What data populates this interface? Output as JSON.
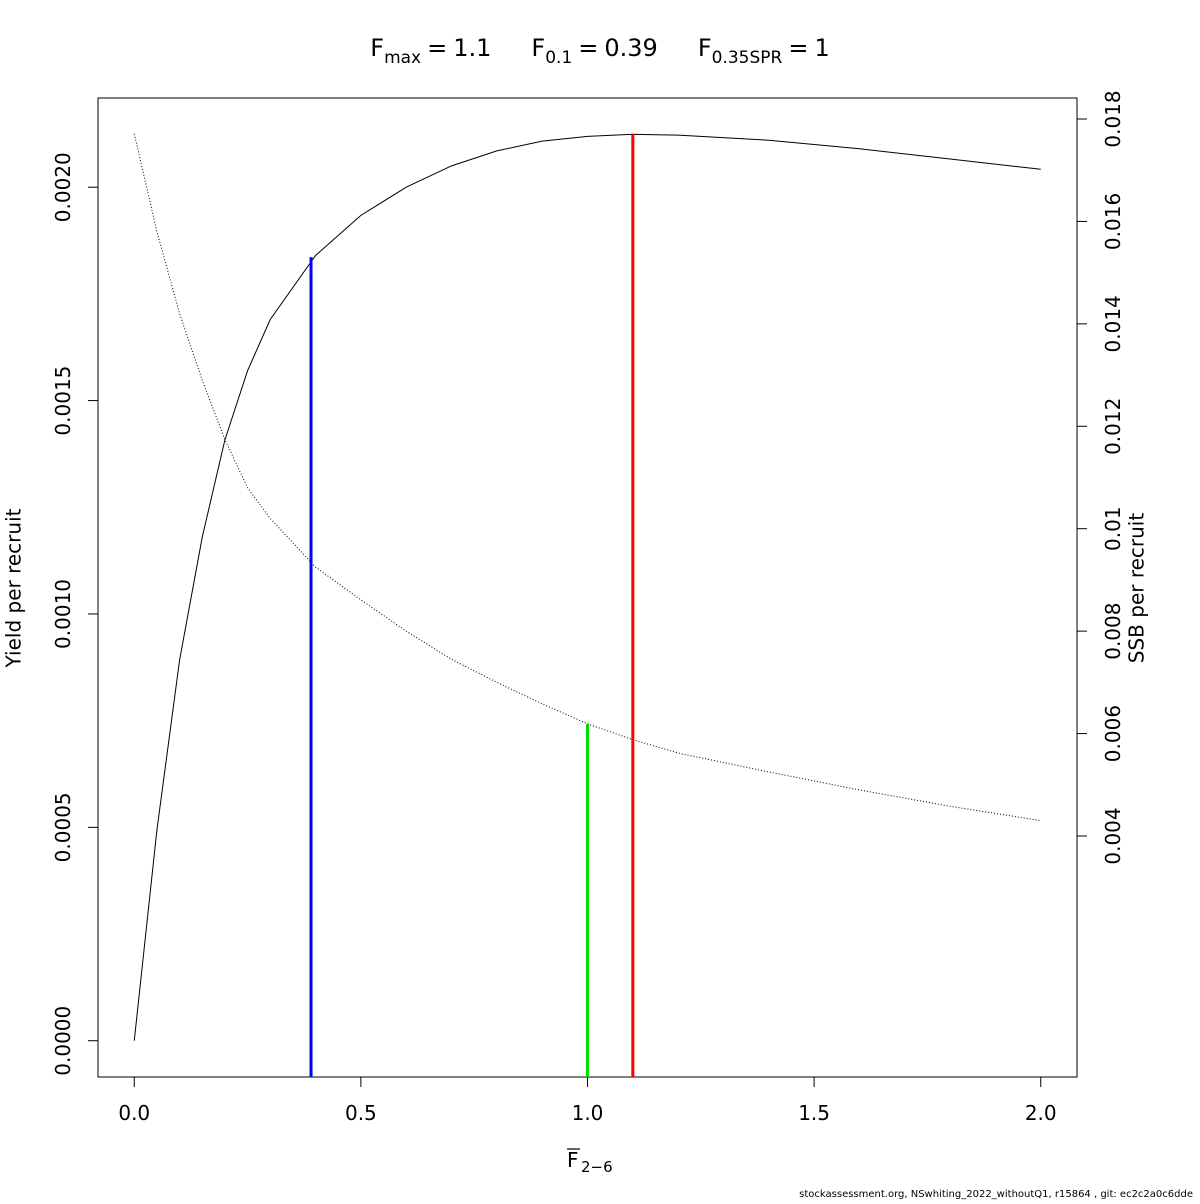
{
  "chart_data": {
    "type": "line",
    "title": [
      {
        "symbol": "F",
        "subscript": "max",
        "value": 1.1
      },
      {
        "symbol": "F",
        "subscript": "0.1",
        "value": 0.39
      },
      {
        "symbol": "F",
        "subscript": "0.35SPR",
        "value": 1
      }
    ],
    "relation": "=",
    "xlabel": "F",
    "xlabel_subscript": "2−6",
    "ylabel": "Yield per recruit",
    "y2label": "SSB per recruit",
    "footer": "stockassessment.org, NSwhiting_2022_withoutQ1, r15864 , git: ec2c2a0c6dde",
    "x": [
      0,
      0.05,
      0.1,
      0.15,
      0.2,
      0.25,
      0.3,
      0.4,
      0.5,
      0.6,
      0.7,
      0.8,
      0.9,
      1.0,
      1.1,
      1.2,
      1.4,
      1.6,
      1.8,
      2.0
    ],
    "series": [
      {
        "color": "#000000",
        "style": "solid",
        "values": [
          0,
          0.000494,
          0.000892,
          0.00118,
          0.001408,
          0.00157,
          0.00169,
          0.00184,
          0.001934,
          0.002,
          0.00205,
          0.002085,
          0.002108,
          0.002119,
          0.002124,
          0.002122,
          0.00211,
          0.00209,
          0.002066,
          0.002042
        ]
      },
      {
        "color": "#000000",
        "style": "dotted",
        "axis": "y2",
        "values": [
          0.01771,
          0.0158,
          0.0142,
          0.0129,
          0.01174,
          0.0108,
          0.0102,
          0.00925,
          0.00861,
          0.008,
          0.00745,
          0.007,
          0.00658,
          0.00619,
          0.00588,
          0.00562,
          0.00525,
          0.0049,
          0.00458,
          0.0043
        ]
      }
    ],
    "reference_lines": [
      {
        "x": 1.1,
        "height": 0.002124,
        "color": "#ff0000"
      },
      {
        "x": 0.39,
        "height": 0.001836,
        "color": "#0000ff"
      },
      {
        "x": 1,
        "height": 0.00619,
        "color": "#00dd00",
        "axis": "y2"
      }
    ],
    "xlim": [
      -0.08,
      2.08
    ],
    "xticks": [
      {
        "value": 0,
        "label": "0.0"
      },
      0.5,
      {
        "value": 1,
        "label": "1.0"
      },
      1.5,
      {
        "value": 2,
        "label": "2.0"
      }
    ],
    "ylim": [
      -8.5e-05,
      0.002209
    ],
    "yticks": [
      {
        "value": 0,
        "label": "0.0000"
      },
      {
        "value": 0.0005,
        "label": "0.0005"
      },
      {
        "value": 0.001,
        "label": "0.0010"
      },
      {
        "value": 0.0015,
        "label": "0.0015"
      },
      {
        "value": 0.002,
        "label": "0.0020"
      }
    ],
    "y2lim": [
      -0.000706,
      0.01841
    ],
    "y2ticks": [
      0.004,
      0.006,
      0.008,
      0.01,
      0.012,
      0.014,
      0.016,
      0.018
    ]
  }
}
